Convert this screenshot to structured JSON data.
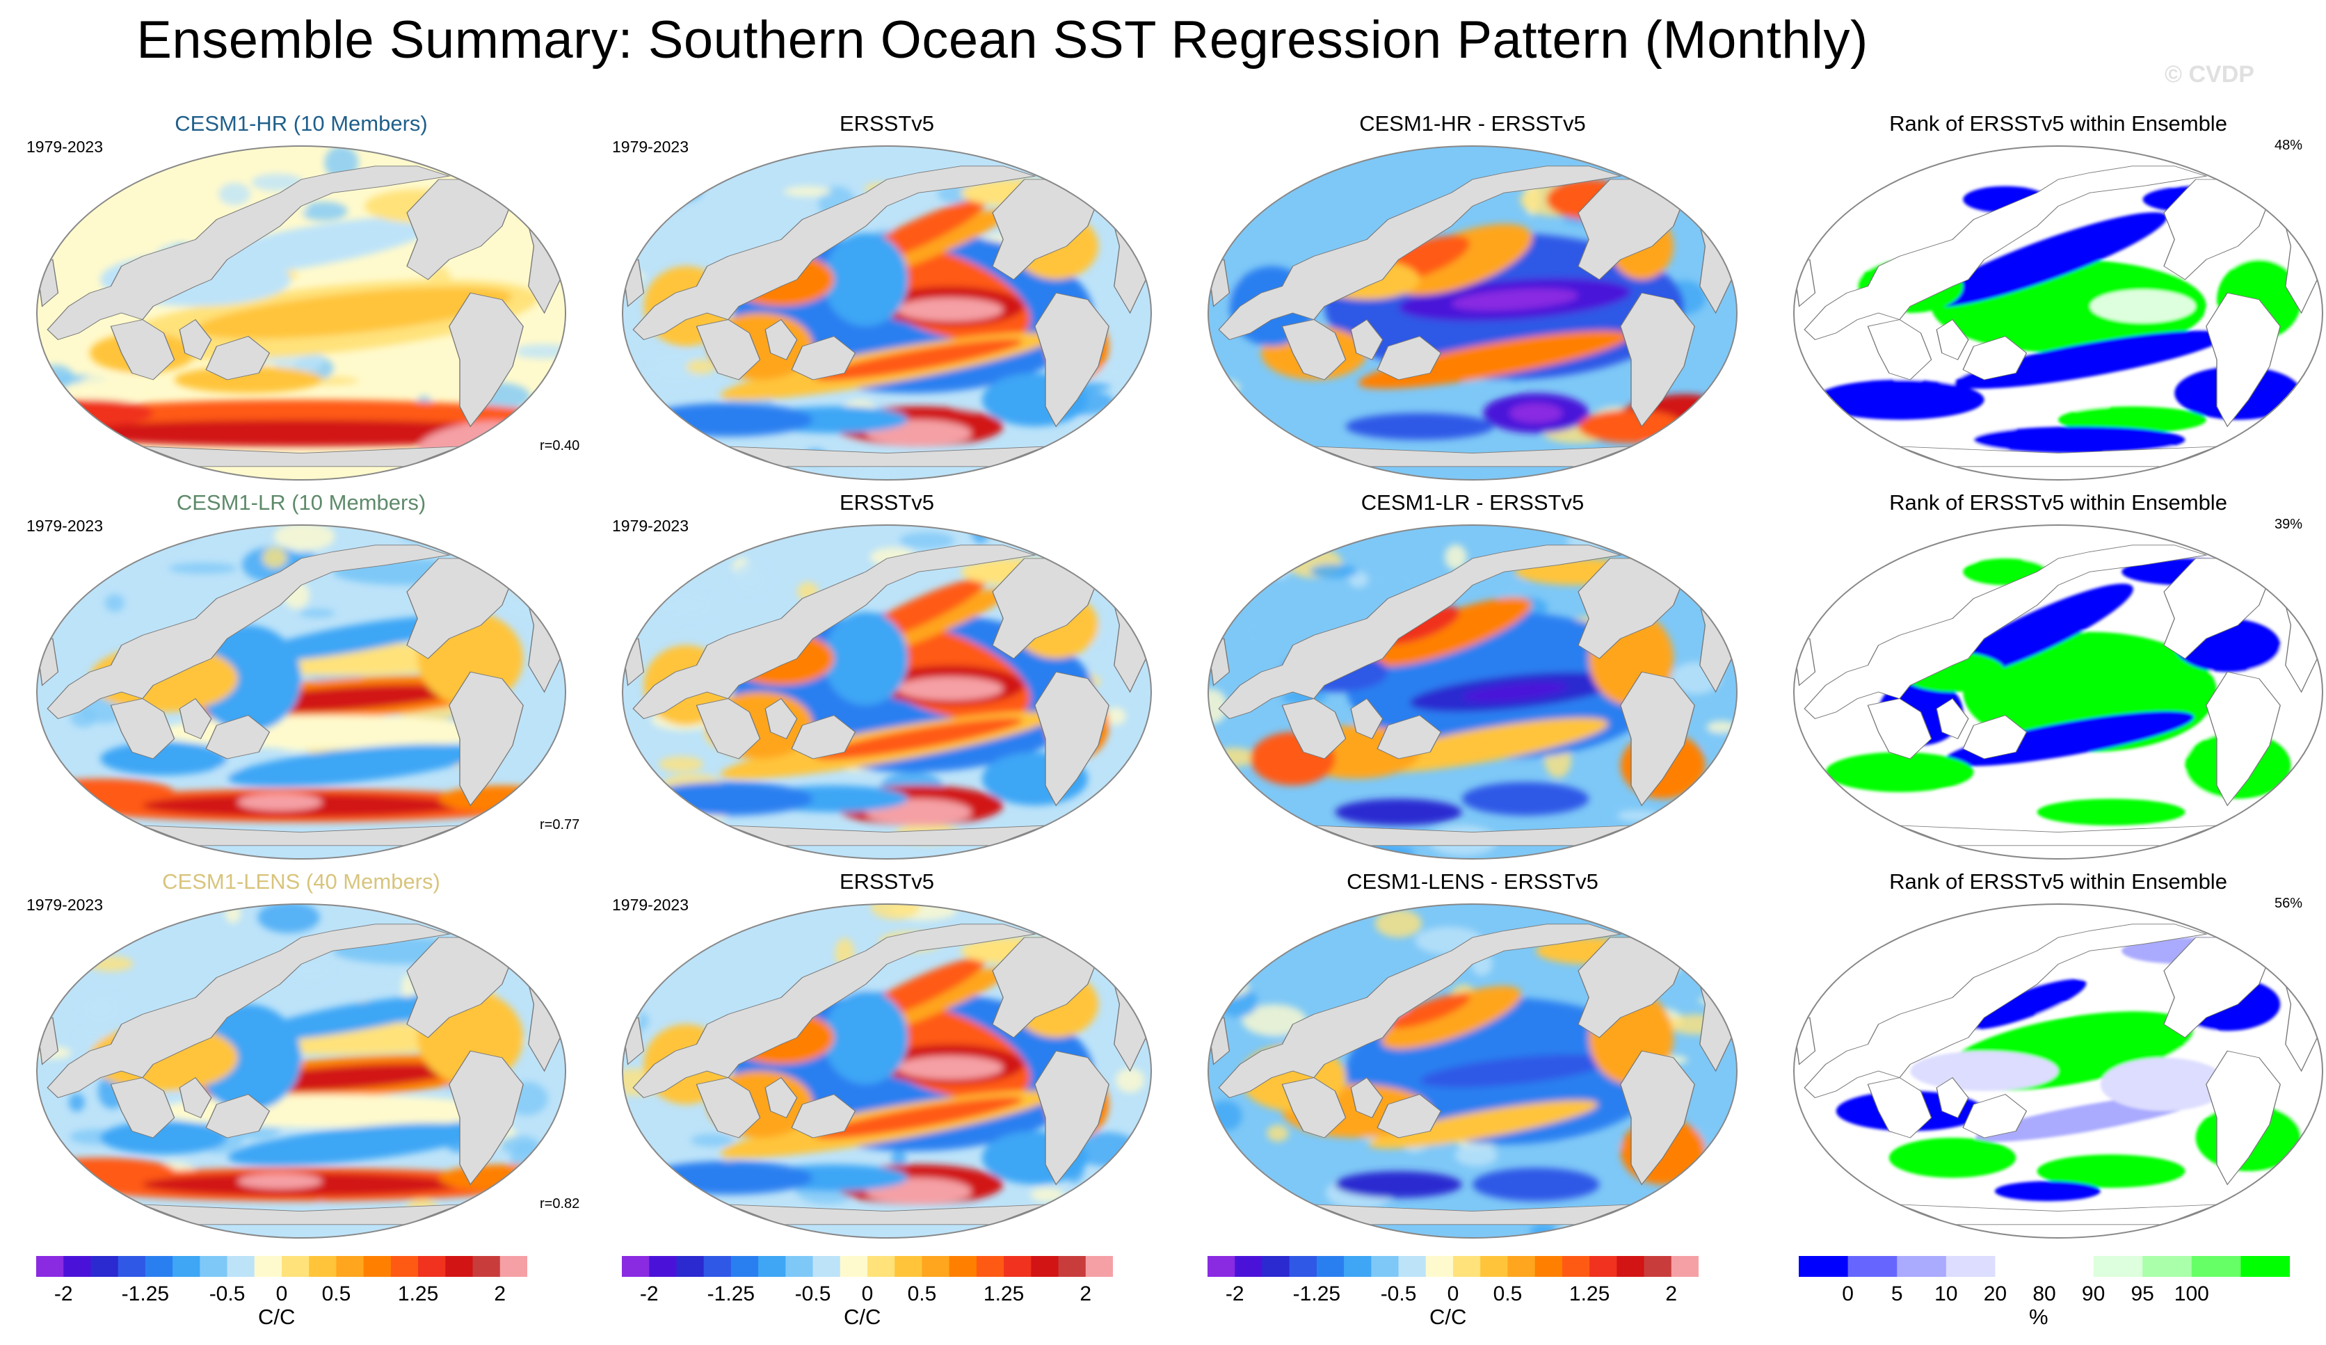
{
  "title": "Ensemble Summary: Southern Ocean SST Regression Pattern (Monthly)",
  "watermark": "© CVDP",
  "chart_data": {
    "type": "heatmap",
    "title": "Ensemble Summary: Southern Ocean SST Regression Pattern (Monthly)",
    "projection": "Robinson (global, Pacific-centered)",
    "period": "1979-2023",
    "rows": [
      {
        "ensemble": "CESM1-HR (10 Members)",
        "ensemble_color": "#1f5f8b",
        "r": "r=0.40",
        "obs": "ERSSTv5",
        "diff": "CESM1-HR - ERSSTv5",
        "rank_title": "Rank of ERSSTv5 within Ensemble",
        "rank_pct": "48%"
      },
      {
        "ensemble": "CESM1-LR (10 Members)",
        "ensemble_color": "#5e8a6a",
        "r": "r=0.77",
        "obs": "ERSSTv5",
        "diff": "CESM1-LR - ERSSTv5",
        "rank_title": "Rank of ERSSTv5 within Ensemble",
        "rank_pct": "39%"
      },
      {
        "ensemble": "CESM1-LENS (40 Members)",
        "ensemble_color": "#d8c47c",
        "r": "r=0.82",
        "obs": "ERSSTv5",
        "diff": "CESM1-LENS - ERSSTv5",
        "rank_title": "Rank of ERSSTv5 within Ensemble",
        "rank_pct": "56%"
      }
    ],
    "sst_colorbar": {
      "unit": "C/C",
      "tick_labels": [
        "-2",
        "-1.25",
        "-0.5",
        "0",
        "0.5",
        "1.25",
        "2"
      ],
      "tick_levels": [
        -2,
        -1.25,
        -0.5,
        0,
        0.5,
        1.25,
        2
      ],
      "range": [
        -2.25,
        2.25
      ],
      "colors": [
        "#8a2be2",
        "#4a12d9",
        "#2a2ad0",
        "#2f58e6",
        "#2a7ff0",
        "#3ea6f5",
        "#7ec8f7",
        "#bde3f9",
        "#fffacd",
        "#ffe27a",
        "#ffc43a",
        "#ffa51e",
        "#ff8000",
        "#ff5a14",
        "#f0321e",
        "#d21414",
        "#c83c3c",
        "#f5a0a5"
      ]
    },
    "rank_colorbar": {
      "unit": "%",
      "tick_labels": [
        "0",
        "5",
        "10",
        "20",
        "80",
        "90",
        "95",
        "100"
      ],
      "tick_levels": [
        0,
        5,
        10,
        20,
        80,
        90,
        95,
        100
      ],
      "colors": [
        "#0000ff",
        "#6666ff",
        "#aaaaff",
        "#ddddff",
        "#ffffff",
        "#ffffff",
        "#ddffdd",
        "#aaffaa",
        "#66ff66",
        "#00ff00"
      ]
    }
  }
}
